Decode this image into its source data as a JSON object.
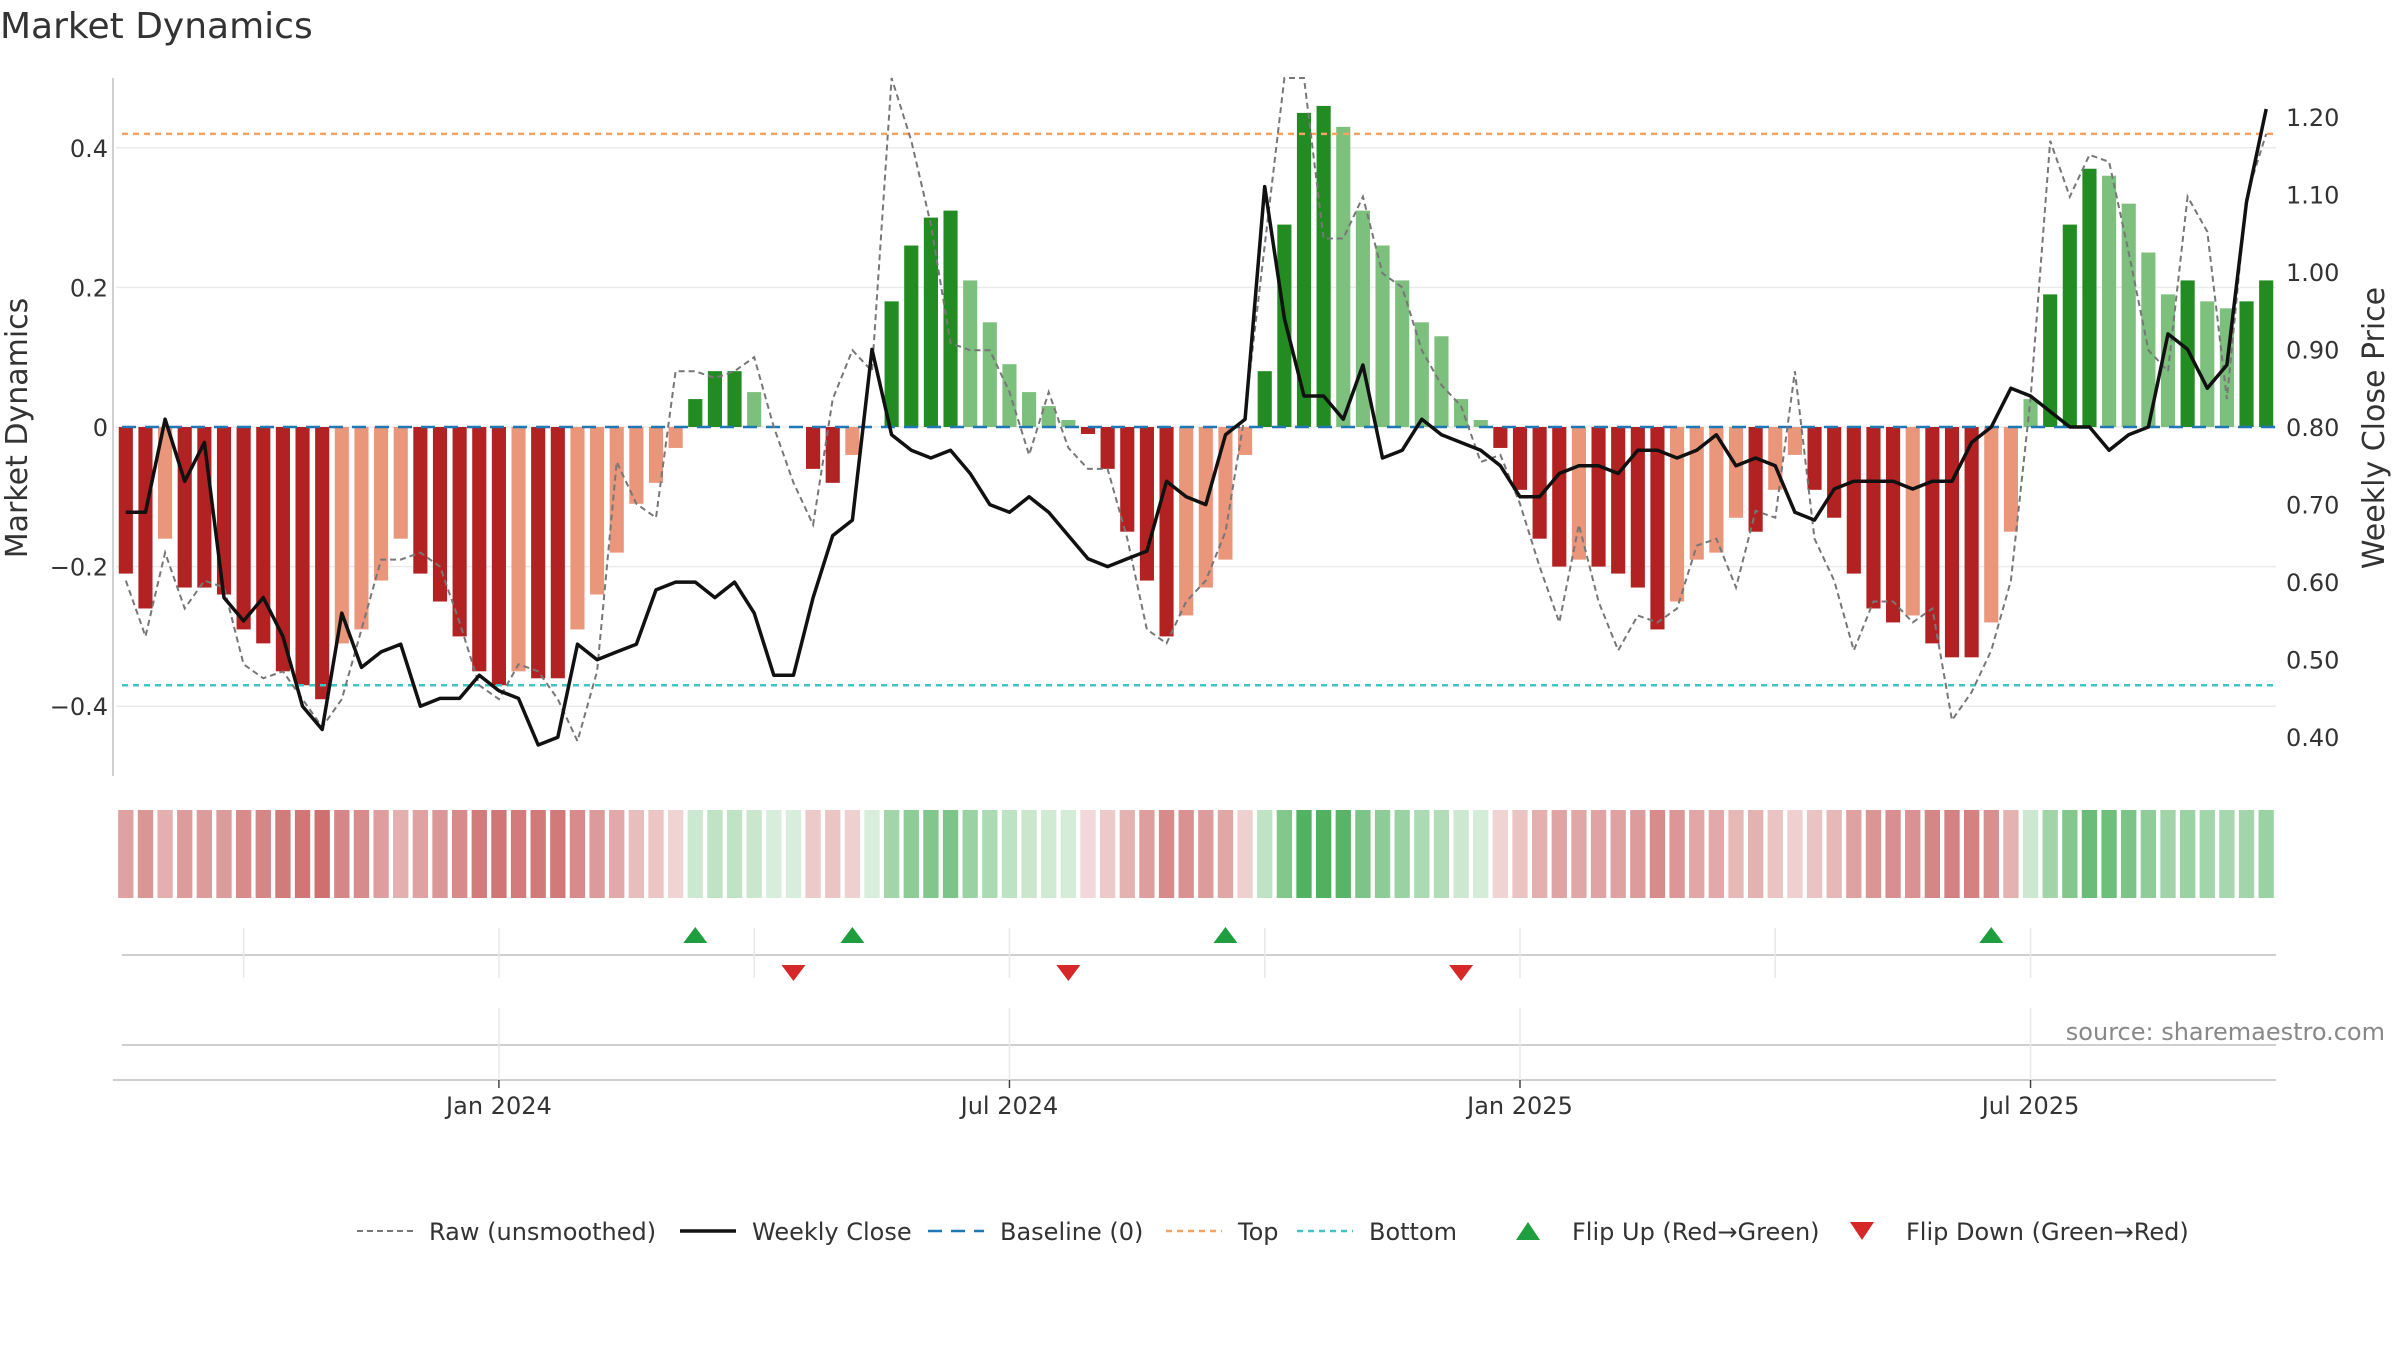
{
  "chart_data": {
    "type": "bar",
    "title": "Market Dynamics",
    "ylabel_left": "Market Dynamics",
    "ylabel_right": "Weekly Close Price",
    "source": "source: sharemaestro.com",
    "ylim_left": [
      -0.5,
      0.5
    ],
    "ylim_right": [
      0.35,
      1.25
    ],
    "yticks_left": [
      0.4,
      0.2,
      0,
      -0.2,
      -0.4
    ],
    "yticks_left_labels": [
      "0.4",
      "0.2",
      "0",
      "−0.2",
      "−0.4"
    ],
    "yticks_right": [
      1.2,
      1.1,
      1.0,
      0.9,
      0.8,
      0.7,
      0.6,
      0.5,
      0.4
    ],
    "yticks_right_labels": [
      "1.20",
      "1.10",
      "1.00",
      "0.90",
      "0.80",
      "0.70",
      "0.60",
      "0.50",
      "0.40"
    ],
    "xticks": [
      {
        "week": 19,
        "label": "Jan 2024"
      },
      {
        "week": 45,
        "label": "Jul 2024"
      },
      {
        "week": 71,
        "label": "Jan 2025"
      },
      {
        "week": 97,
        "label": "Jul 2025"
      }
    ],
    "minor_grid_weeks": [
      6,
      32,
      58,
      84
    ],
    "top_line": 0.42,
    "bottom_line": -0.37,
    "grid": true,
    "legend_position": "bottom",
    "series": [
      {
        "name": "Market Dynamics (bars)",
        "values": [
          -0.21,
          -0.26,
          -0.16,
          -0.23,
          -0.23,
          -0.24,
          -0.29,
          -0.31,
          -0.35,
          -0.37,
          -0.39,
          -0.31,
          -0.29,
          -0.22,
          -0.16,
          -0.21,
          -0.25,
          -0.3,
          -0.35,
          -0.37,
          -0.35,
          -0.36,
          -0.36,
          -0.29,
          -0.24,
          -0.18,
          -0.11,
          -0.08,
          -0.03,
          0.04,
          0.08,
          0.08,
          0.05,
          0,
          0,
          -0.06,
          -0.08,
          -0.04,
          0,
          0.18,
          0.26,
          0.3,
          0.31,
          0.21,
          0.15,
          0.09,
          0.05,
          0.03,
          0.01,
          -0.01,
          -0.06,
          -0.15,
          -0.22,
          -0.3,
          -0.27,
          -0.23,
          -0.19,
          -0.04,
          0.08,
          0.29,
          0.45,
          0.46,
          0.43,
          0.31,
          0.26,
          0.21,
          0.15,
          0.13,
          0.04,
          0.01,
          -0.03,
          -0.09,
          -0.16,
          -0.2,
          -0.19,
          -0.2,
          -0.21,
          -0.23,
          -0.29,
          -0.25,
          -0.19,
          -0.18,
          -0.13,
          -0.15,
          -0.09,
          -0.04,
          -0.09,
          -0.13,
          -0.21,
          -0.26,
          -0.28,
          -0.27,
          -0.31,
          -0.33,
          -0.33,
          -0.28,
          -0.15,
          0.04,
          0.19,
          0.29,
          0.37,
          0.36,
          0.32,
          0.25,
          0.19,
          0.21,
          0.18,
          0.17,
          0.18,
          0.21
        ]
      },
      {
        "name": "Raw (unsmoothed)",
        "values": [
          -0.22,
          -0.3,
          -0.18,
          -0.26,
          -0.22,
          -0.23,
          -0.34,
          -0.36,
          -0.35,
          -0.39,
          -0.43,
          -0.39,
          -0.29,
          -0.19,
          -0.19,
          -0.18,
          -0.2,
          -0.28,
          -0.37,
          -0.39,
          -0.34,
          -0.35,
          -0.39,
          -0.45,
          -0.35,
          -0.05,
          -0.11,
          -0.13,
          0.08,
          0.08,
          0.07,
          0.08,
          0.1,
          0,
          -0.08,
          -0.14,
          0.04,
          0.11,
          0.08,
          0.5,
          0.41,
          0.29,
          0.12,
          0.11,
          0.11,
          0.05,
          -0.04,
          0.05,
          -0.03,
          -0.06,
          -0.06,
          -0.16,
          -0.29,
          -0.31,
          -0.25,
          -0.22,
          -0.15,
          0.02,
          0.26,
          0.5,
          0.52,
          0.27,
          0.27,
          0.33,
          0.22,
          0.2,
          0.11,
          0.06,
          0.03,
          -0.05,
          -0.04,
          -0.11,
          -0.2,
          -0.28,
          -0.14,
          -0.25,
          -0.32,
          -0.27,
          -0.28,
          -0.26,
          -0.17,
          -0.16,
          -0.23,
          -0.12,
          -0.13,
          0.08,
          -0.16,
          -0.22,
          -0.32,
          -0.25,
          -0.25,
          -0.28,
          -0.26,
          -0.42,
          -0.38,
          -0.32,
          -0.22,
          0.04,
          0.41,
          0.33,
          0.39,
          0.38,
          0.25,
          0.11,
          0.08,
          0.33,
          0.28,
          0.04,
          0.33,
          0.42
        ]
      },
      {
        "name": "Weekly Close",
        "values": [
          0.69,
          0.69,
          0.81,
          0.73,
          0.78,
          0.58,
          0.55,
          0.58,
          0.53,
          0.44,
          0.41,
          0.56,
          0.49,
          0.51,
          0.52,
          0.44,
          0.45,
          0.45,
          0.48,
          0.46,
          0.45,
          0.39,
          0.4,
          0.52,
          0.5,
          0.51,
          0.52,
          0.59,
          0.6,
          0.6,
          0.58,
          0.6,
          0.56,
          0.48,
          0.48,
          0.58,
          0.66,
          0.68,
          0.9,
          0.79,
          0.77,
          0.76,
          0.77,
          0.74,
          0.7,
          0.69,
          0.71,
          0.69,
          0.66,
          0.63,
          0.62,
          0.63,
          0.64,
          0.73,
          0.71,
          0.7,
          0.79,
          0.81,
          1.11,
          0.94,
          0.84,
          0.84,
          0.81,
          0.88,
          0.76,
          0.77,
          0.81,
          0.79,
          0.78,
          0.77,
          0.75,
          0.71,
          0.71,
          0.74,
          0.75,
          0.75,
          0.74,
          0.77,
          0.77,
          0.76,
          0.77,
          0.79,
          0.75,
          0.76,
          0.75,
          0.69,
          0.68,
          0.72,
          0.73,
          0.73,
          0.73,
          0.72,
          0.73,
          0.73,
          0.78,
          0.8,
          0.85,
          0.84,
          0.82,
          0.8,
          0.8,
          0.77,
          0.79,
          0.8,
          0.92,
          0.9,
          0.85,
          0.88,
          1.09,
          1.21
        ]
      }
    ],
    "flip_up_weeks": [
      29,
      37,
      56,
      95
    ],
    "flip_down_weeks": [
      34,
      48,
      68
    ],
    "legend": [
      {
        "label": "Raw (unsmoothed)",
        "kind": "raw"
      },
      {
        "label": "Weekly Close",
        "kind": "close"
      },
      {
        "label": "Baseline (0)",
        "kind": "baseline"
      },
      {
        "label": "Top",
        "kind": "top"
      },
      {
        "label": "Bottom",
        "kind": "bottom"
      },
      {
        "label": "Flip Up (Red→Green)",
        "kind": "flipup"
      },
      {
        "label": "Flip Down (Green→Red)",
        "kind": "flipdown"
      }
    ],
    "colors": {
      "strong_red": "#b22222",
      "light_red": "#e9967a",
      "strong_green": "#228b22",
      "light_green": "#7dbf7d",
      "raw": "#777777",
      "close": "#111111",
      "baseline": "#1f77b4",
      "top": "#f4a261",
      "bottom": "#40c4c4",
      "flip_up": "#1e9e3e",
      "flip_down": "#d62828"
    }
  }
}
